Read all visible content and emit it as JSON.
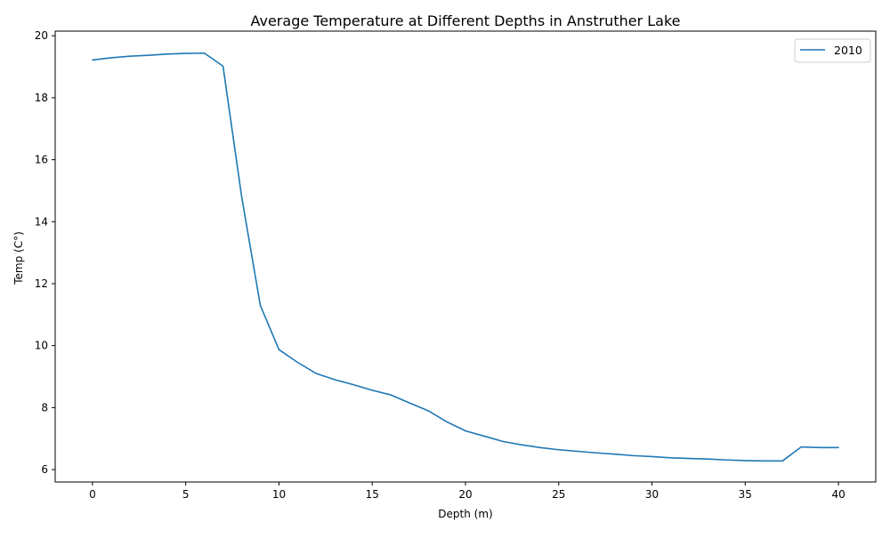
{
  "chart_data": {
    "type": "line",
    "title": "Average Temperature at Different Depths in Anstruther Lake",
    "xlabel": "Depth (m)",
    "ylabel": "Temp (C°)",
    "xlim": [
      -2,
      42
    ],
    "ylim": [
      5.6,
      20.15
    ],
    "x_ticks": [
      0,
      5,
      10,
      15,
      20,
      25,
      30,
      35,
      40
    ],
    "y_ticks": [
      6,
      8,
      10,
      12,
      14,
      16,
      18,
      20
    ],
    "grid": false,
    "legend": {
      "position": "top-right"
    },
    "series": [
      {
        "name": "2010",
        "color": "#1f77b4",
        "x": [
          0,
          1,
          2,
          3,
          4,
          5,
          6,
          7,
          8,
          9,
          10,
          11,
          12,
          13,
          14,
          15,
          16,
          17,
          18,
          19,
          20,
          21,
          22,
          23,
          24,
          25,
          26,
          27,
          28,
          29,
          30,
          31,
          32,
          33,
          34,
          35,
          36,
          37,
          38,
          39,
          40
        ],
        "y": [
          19.22,
          19.29,
          19.34,
          19.37,
          19.41,
          19.43,
          19.44,
          19.02,
          14.8,
          11.3,
          9.87,
          9.46,
          9.1,
          8.9,
          8.74,
          8.56,
          8.41,
          8.15,
          7.9,
          7.54,
          7.25,
          7.08,
          6.91,
          6.8,
          6.71,
          6.64,
          6.59,
          6.54,
          6.5,
          6.45,
          6.42,
          6.38,
          6.36,
          6.34,
          6.31,
          6.29,
          6.28,
          6.28,
          6.73,
          6.71,
          6.71
        ]
      }
    ]
  }
}
